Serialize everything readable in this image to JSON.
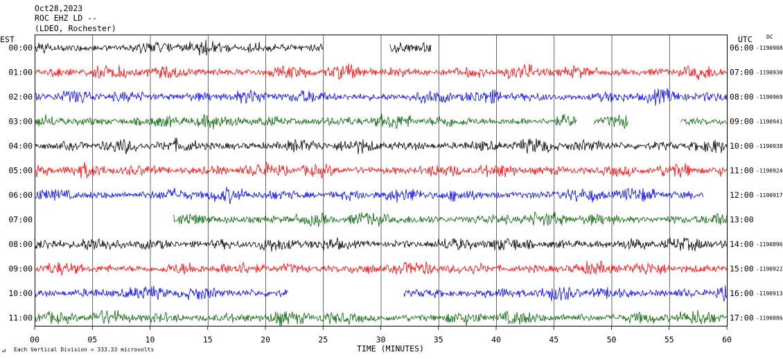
{
  "chart_data": {
    "type": "line",
    "title_lines": [
      "Oct28,2023",
      "ROC EHZ LD --",
      "(LDEO, Rochester)"
    ],
    "left_axis_label": "EST",
    "right_axis_label": "UTC",
    "dc_label": "DC",
    "xlabel": "TIME (MINUTES)",
    "xlim": [
      0,
      60
    ],
    "x_ticks": [
      "00",
      "05",
      "10",
      "15",
      "20",
      "25",
      "30",
      "35",
      "40",
      "45",
      "50",
      "55",
      "60"
    ],
    "footer": "Each Vertical Division =  333.33 microvolts",
    "colors": [
      "#000000",
      "#ff0000",
      "#0000ff",
      "#006400"
    ],
    "rows": [
      {
        "est": "00:00",
        "utc": "06:00",
        "dc": "-1190908",
        "segments": [
          [
            0,
            25
          ],
          [
            30.8,
            34.4
          ]
        ]
      },
      {
        "est": "01:00",
        "utc": "07:00",
        "dc": "-1190930",
        "segments": [
          [
            0,
            60
          ]
        ]
      },
      {
        "est": "02:00",
        "utc": "08:00",
        "dc": "-1190969",
        "segments": [
          [
            0,
            60
          ]
        ]
      },
      {
        "est": "03:00",
        "utc": "09:00",
        "dc": "-1190941",
        "segments": [
          [
            0,
            47
          ],
          [
            48.5,
            51.5
          ],
          [
            56,
            60
          ]
        ]
      },
      {
        "est": "04:00",
        "utc": "10:00",
        "dc": "-1190938",
        "segments": [
          [
            0,
            60
          ]
        ]
      },
      {
        "est": "05:00",
        "utc": "11:00",
        "dc": "-1190924",
        "segments": [
          [
            0,
            60
          ]
        ]
      },
      {
        "est": "06:00",
        "utc": "12:00",
        "dc": "-1190917",
        "segments": [
          [
            0,
            58
          ]
        ]
      },
      {
        "est": "07:00",
        "utc": "13:00",
        "dc": "",
        "segments": [
          [
            12,
            60
          ]
        ]
      },
      {
        "est": "08:00",
        "utc": "14:00",
        "dc": "-1190896",
        "segments": [
          [
            0,
            60
          ]
        ]
      },
      {
        "est": "09:00",
        "utc": "15:00",
        "dc": "-1190922",
        "segments": [
          [
            0,
            60
          ]
        ]
      },
      {
        "est": "10:00",
        "utc": "16:00",
        "dc": "-1190913",
        "segments": [
          [
            0,
            22
          ],
          [
            32,
            60
          ]
        ]
      },
      {
        "est": "11:00",
        "utc": "17:00",
        "dc": "-1190886",
        "segments": [
          [
            0,
            60
          ]
        ]
      }
    ]
  }
}
